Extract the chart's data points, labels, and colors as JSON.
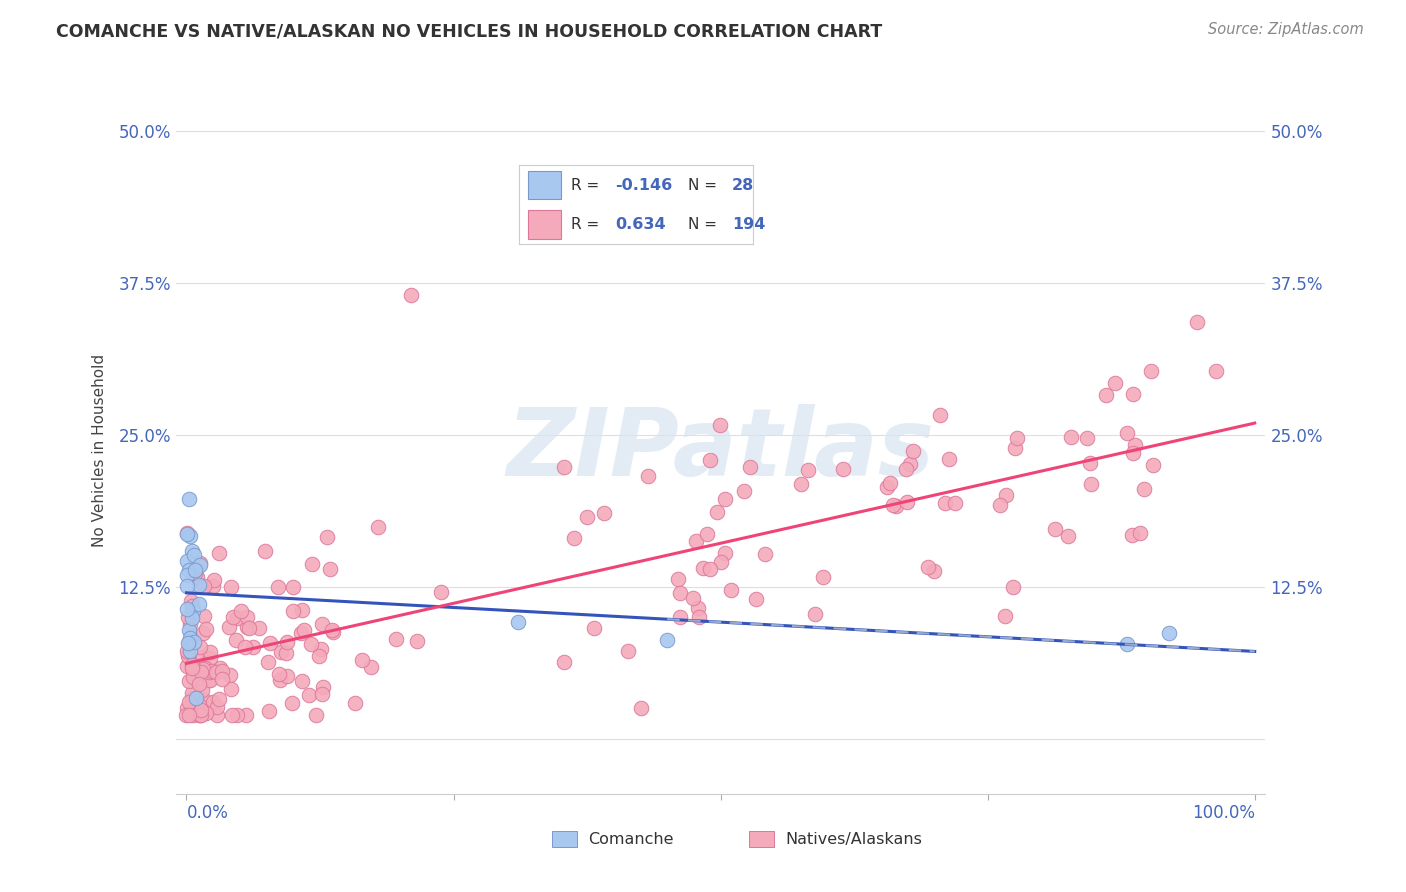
{
  "title": "COMANCHE VS NATIVE/ALASKAN NO VEHICLES IN HOUSEHOLD CORRELATION CHART",
  "source": "Source: ZipAtlas.com",
  "ylabel": "No Vehicles in Household",
  "comanche_color": "#A8C8F0",
  "comanche_edge": "#7799CC",
  "native_color": "#F4AABB",
  "native_edge": "#DD7799",
  "regression_blue": "#3355BB",
  "regression_pink": "#EE4477",
  "regression_dashed_color": "#99AACCAA",
  "watermark_text": "ZIPatlas",
  "watermark_color": "#D8E4F0",
  "background": "#FFFFFF",
  "grid_color": "#DDDDEE",
  "title_color": "#333333",
  "source_color": "#888888",
  "tick_label_color": "#4466BB",
  "ytick_vals": [
    0.0,
    0.125,
    0.25,
    0.375,
    0.5
  ],
  "ytick_labels": [
    "",
    "12.5%",
    "25.0%",
    "37.5%",
    "50.0%"
  ],
  "xlim": [
    -0.01,
    1.01
  ],
  "ylim": [
    -0.045,
    0.52
  ],
  "legend_R1": "-0.146",
  "legend_N1": "28",
  "legend_R2": "0.634",
  "legend_N2": "194"
}
